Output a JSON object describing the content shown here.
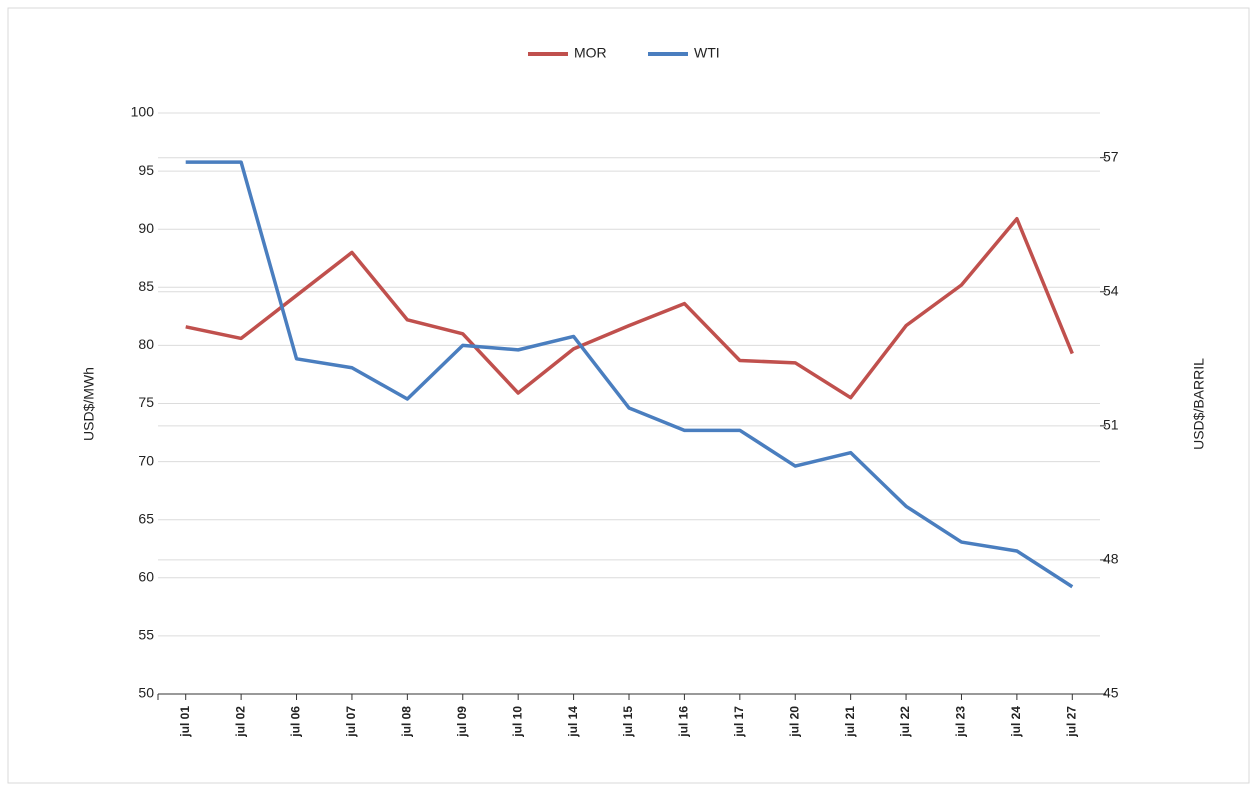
{
  "chart_data": {
    "type": "line",
    "categories": [
      "jul 01",
      "jul 02",
      "jul 06",
      "jul 07",
      "jul 08",
      "jul 09",
      "jul 10",
      "jul 14",
      "jul 15",
      "jul 16",
      "jul 17",
      "jul 20",
      "jul 21",
      "jul 22",
      "jul 23",
      "jul 24",
      "jul 27"
    ],
    "series": [
      {
        "name": "MOR",
        "color": "#c0504d",
        "values": [
          81.6,
          80.6,
          84.3,
          88.0,
          82.2,
          81.0,
          75.9,
          79.7,
          81.7,
          83.6,
          78.7,
          78.5,
          75.5,
          81.7,
          85.2,
          90.9,
          79.3
        ]
      },
      {
        "name": "WTI",
        "color": "#4a7ebf",
        "axis": "y2",
        "values": [
          56.9,
          56.9,
          52.5,
          52.3,
          51.6,
          52.8,
          52.7,
          53.0,
          51.4,
          50.9,
          50.9,
          50.1,
          50.4,
          49.2,
          48.4,
          48.2,
          47.4
        ]
      }
    ],
    "ylabel": "USD$/MWh",
    "y2label": "USD$/BARRIL",
    "ylim": [
      50,
      100
    ],
    "yticks": [
      50,
      55,
      60,
      65,
      70,
      75,
      80,
      85,
      90,
      95,
      100
    ],
    "y2lim": [
      45,
      58
    ],
    "y2ticks": [
      45,
      48,
      51,
      54,
      57
    ],
    "grid": true,
    "legend": "top"
  }
}
